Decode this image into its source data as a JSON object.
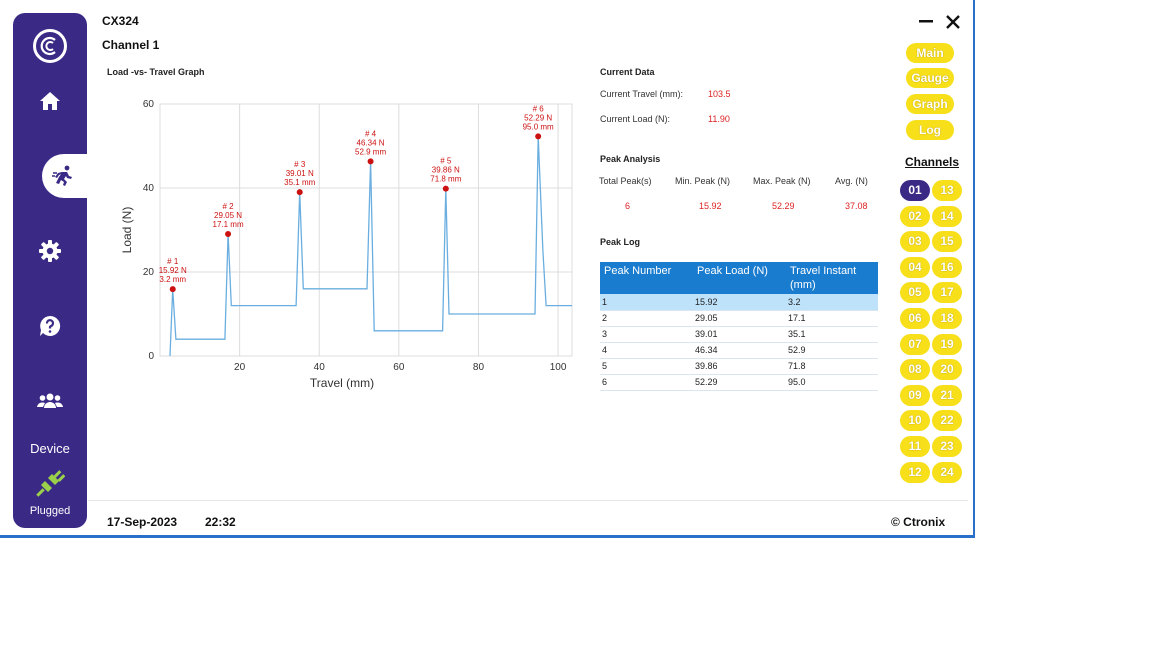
{
  "app": {
    "model": "CX324",
    "channel_title": "Channel 1"
  },
  "sidebar": {
    "logo_icon": "cronix-logo-icon",
    "items": [
      {
        "name": "home",
        "icon": "home-icon"
      },
      {
        "name": "run",
        "icon": "running-icon",
        "active": true
      },
      {
        "name": "settings",
        "icon": "gear-icon"
      },
      {
        "name": "help",
        "icon": "help-icon"
      },
      {
        "name": "users",
        "icon": "users-icon"
      }
    ],
    "device_label": "Device",
    "device_status": "Plugged",
    "plug_color": "#9bd14a"
  },
  "graph": {
    "title": "Load -vs- Travel Graph"
  },
  "chart_data": {
    "type": "line",
    "title": "Load -vs- Travel Graph",
    "xlabel": "Travel (mm)",
    "ylabel": "Load (N)",
    "xlim": [
      0,
      103.5
    ],
    "ylim": [
      0,
      60
    ],
    "xticks": [
      20,
      40,
      60,
      80,
      100
    ],
    "yticks": [
      0,
      20,
      40,
      60
    ],
    "grid": true,
    "line_color": "#6aaee0",
    "series": [
      {
        "name": "Load",
        "points": [
          [
            2.5,
            0
          ],
          [
            3.2,
            15.92
          ],
          [
            4,
            4
          ],
          [
            16.3,
            4
          ],
          [
            17.1,
            29.05
          ],
          [
            17.9,
            12
          ],
          [
            34.2,
            12
          ],
          [
            35.1,
            39.01
          ],
          [
            36,
            16
          ],
          [
            52,
            16
          ],
          [
            52.9,
            46.34
          ],
          [
            53.8,
            6
          ],
          [
            71,
            6
          ],
          [
            71.8,
            39.86
          ],
          [
            72.6,
            10
          ],
          [
            94.2,
            10
          ],
          [
            95.0,
            52.29
          ],
          [
            96.2,
            25
          ],
          [
            97,
            12
          ],
          [
            103.5,
            12
          ]
        ]
      }
    ],
    "peaks": [
      {
        "label": "# 1",
        "load_text": "15.92 N",
        "travel_text": "3.2 mm",
        "x": 3.2,
        "y": 15.92
      },
      {
        "label": "# 2",
        "load_text": "29.05 N",
        "travel_text": "17.1 mm",
        "x": 17.1,
        "y": 29.05
      },
      {
        "label": "# 3",
        "load_text": "39.01 N",
        "travel_text": "35.1 mm",
        "x": 35.1,
        "y": 39.01
      },
      {
        "label": "# 4",
        "load_text": "46.34 N",
        "travel_text": "52.9 mm",
        "x": 52.9,
        "y": 46.34
      },
      {
        "label": "# 5",
        "load_text": "39.86 N",
        "travel_text": "71.8 mm",
        "x": 71.8,
        "y": 39.86
      },
      {
        "label": "# 6",
        "load_text": "52.29 N",
        "travel_text": "95.0 mm",
        "x": 95.0,
        "y": 52.29
      }
    ],
    "peak_color": "#cc1111"
  },
  "current": {
    "title": "Current Data",
    "travel_label": "Current Travel (mm):",
    "travel_value": "103.5",
    "load_label": "Current Load (N):",
    "load_value": "11.90"
  },
  "analysis": {
    "title": "Peak Analysis",
    "headers": [
      "Total Peak(s)",
      "Min. Peak (N)",
      "Max. Peak (N)",
      "Avg. (N)"
    ],
    "values": [
      "6",
      "15.92",
      "52.29",
      "37.08"
    ]
  },
  "peak_log": {
    "title": "Peak Log",
    "columns": [
      "Peak Number",
      "Peak Load (N)",
      "Travel Instant (mm)"
    ],
    "rows": [
      [
        "1",
        "15.92",
        "3.2"
      ],
      [
        "2",
        "29.05",
        "17.1"
      ],
      [
        "3",
        "39.01",
        "35.1"
      ],
      [
        "4",
        "46.34",
        "52.9"
      ],
      [
        "5",
        "39.86",
        "71.8"
      ],
      [
        "6",
        "52.29",
        "95.0"
      ]
    ]
  },
  "nav_buttons": [
    "Main",
    "Gauge",
    "Graph",
    "Log"
  ],
  "channels": {
    "title": "Channels",
    "left": [
      "01",
      "02",
      "03",
      "04",
      "05",
      "06",
      "07",
      "08",
      "09",
      "10",
      "11",
      "12"
    ],
    "right": [
      "13",
      "14",
      "15",
      "16",
      "17",
      "18",
      "19",
      "20",
      "21",
      "22",
      "23",
      "24"
    ],
    "active": "01"
  },
  "footer": {
    "date": "17-Sep-2023",
    "time": "22:32",
    "brand": "© Ctronix"
  }
}
